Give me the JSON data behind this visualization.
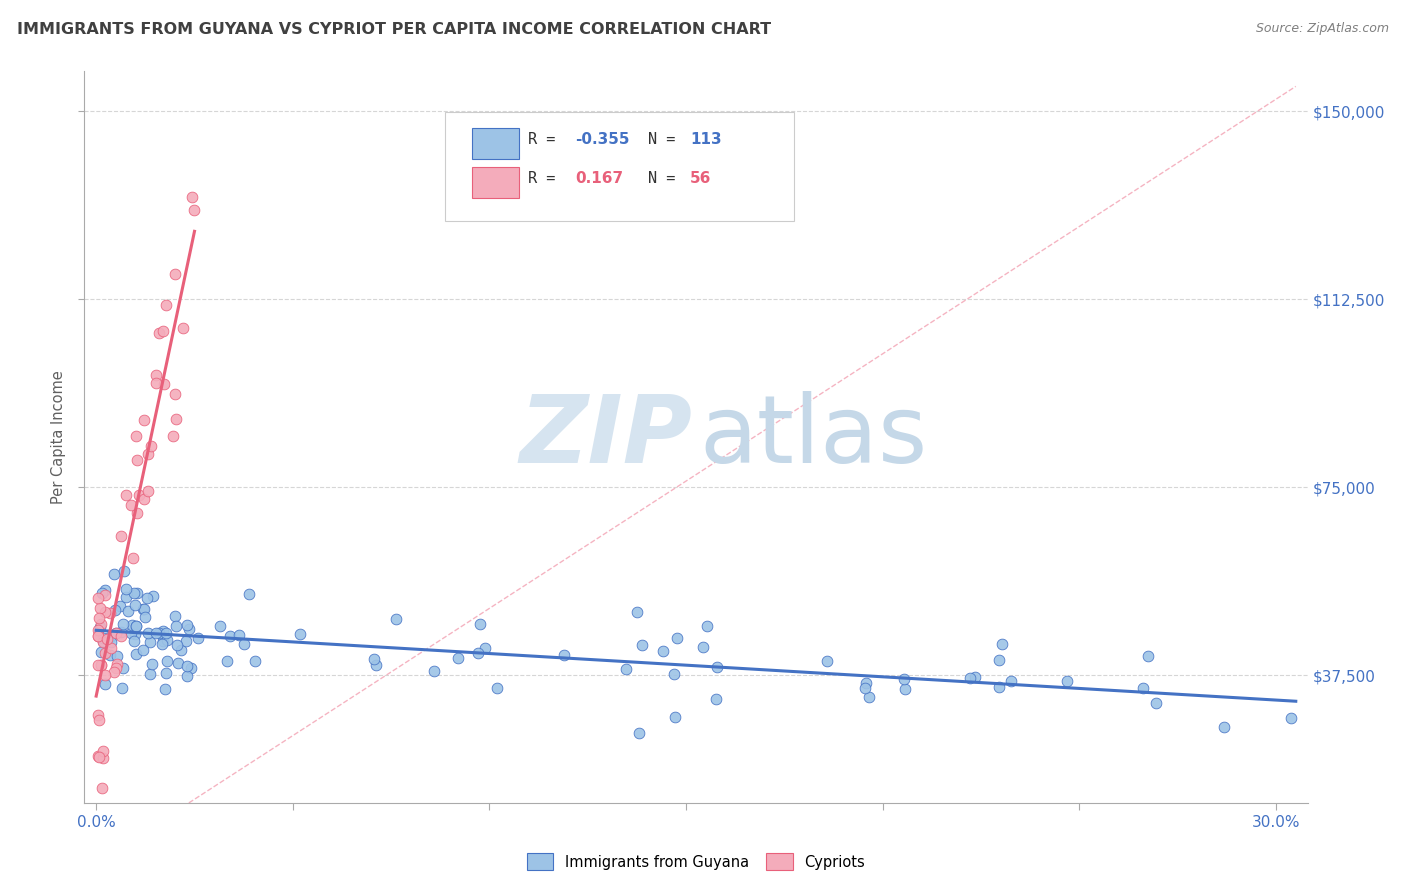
{
  "title": "IMMIGRANTS FROM GUYANA VS CYPRIOT PER CAPITA INCOME CORRELATION CHART",
  "source": "Source: ZipAtlas.com",
  "ylabel": "Per Capita Income",
  "yticks_values": [
    37500,
    75000,
    112500,
    150000
  ],
  "yticks_labels": [
    "$37,500",
    "$75,000",
    "$112,500",
    "$150,000"
  ],
  "ymin": 12000,
  "ymax": 158000,
  "xmin": -0.003,
  "xmax": 0.308,
  "blue_color": "#4472C4",
  "pink_color": "#E8607A",
  "blue_scatter_face": "#9DC3E6",
  "pink_scatter_face": "#F4ACBB",
  "blue_scatter_edge": "#4472C4",
  "pink_scatter_edge": "#E8607A",
  "diag_line_color": "#F4ACBB",
  "grid_color": "#CCCCCC",
  "background_color": "#FFFFFF",
  "title_color": "#404040",
  "right_label_color": "#4472C4",
  "source_color": "#808080",
  "legend_blue_face": "#9DC3E6",
  "legend_pink_face": "#F4ACBB",
  "legend_blue_edge": "#4472C4",
  "legend_pink_edge": "#E8607A",
  "watermark_zip_color": "#D6E4F0",
  "watermark_atlas_color": "#C5D8E8",
  "seed": 123
}
